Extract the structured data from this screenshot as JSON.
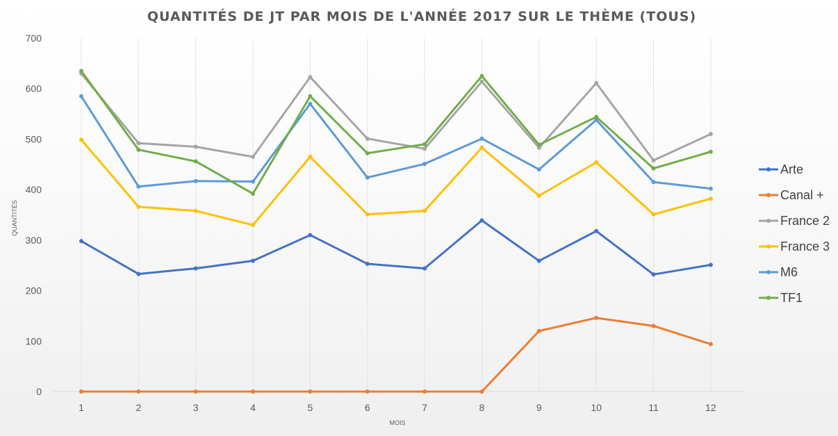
{
  "chart_data": {
    "type": "line",
    "title": "QUANTITÉS DE JT PAR MOIS DE L'ANNÉE 2017 SUR LE THÈME (TOUS)",
    "xlabel": "MOIS",
    "ylabel": "QUANTITÉS",
    "x": [
      "1",
      "2",
      "3",
      "4",
      "5",
      "6",
      "7",
      "8",
      "9",
      "10",
      "11",
      "12"
    ],
    "ylim": [
      0,
      700
    ],
    "yticks": [
      "0",
      "100",
      "200",
      "300",
      "400",
      "500",
      "600",
      "700"
    ],
    "grid": "vertical",
    "legend": "right",
    "series": [
      {
        "name": "Arte",
        "color": "#4472C4",
        "values": [
          298,
          233,
          244,
          259,
          310,
          253,
          244,
          339,
          259,
          318,
          232,
          251
        ]
      },
      {
        "name": "Canal +",
        "color": "#ED7D31",
        "values": [
          0,
          0,
          0,
          0,
          0,
          0,
          0,
          0,
          120,
          146,
          130,
          94
        ]
      },
      {
        "name": "France 2",
        "color": "#A5A5A5",
        "values": [
          630,
          492,
          485,
          465,
          623,
          501,
          481,
          614,
          483,
          611,
          458,
          510
        ]
      },
      {
        "name": "France 3",
        "color": "#FFC000",
        "values": [
          499,
          366,
          358,
          330,
          465,
          351,
          358,
          483,
          388,
          454,
          351,
          382
        ]
      },
      {
        "name": "M6",
        "color": "#5B9BD5",
        "values": [
          585,
          406,
          417,
          416,
          570,
          424,
          451,
          501,
          440,
          538,
          415,
          402
        ]
      },
      {
        "name": "TF1",
        "color": "#70AD47",
        "values": [
          635,
          479,
          456,
          392,
          585,
          472,
          490,
          625,
          489,
          544,
          442,
          475
        ]
      }
    ]
  }
}
